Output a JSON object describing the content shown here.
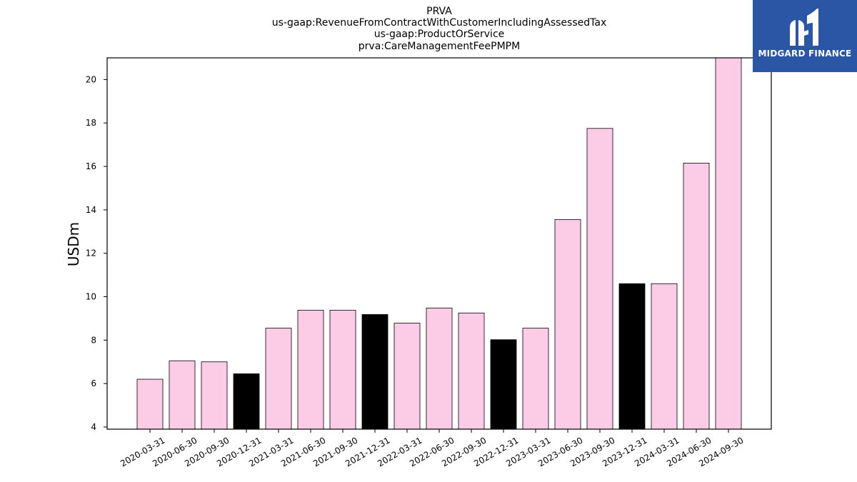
{
  "chart_data": {
    "type": "bar",
    "title_lines": [
      "PRVA",
      "us-gaap:RevenueFromContractWithCustomerIncludingAssessedTax",
      "us-gaap:ProductOrService",
      "prva:CareManagementFeePMPM"
    ],
    "ylabel": "USDm",
    "ylim": [
      3.9,
      21.0
    ],
    "yticks": [
      4,
      6,
      8,
      10,
      12,
      14,
      16,
      18,
      20
    ],
    "categories": [
      "2020-03-31",
      "2020-06-30",
      "2020-09-30",
      "2020-12-31",
      "2021-03-31",
      "2021-06-30",
      "2021-09-30",
      "2021-12-31",
      "2022-03-31",
      "2022-06-30",
      "2022-09-30",
      "2022-12-31",
      "2023-03-31",
      "2023-06-30",
      "2023-09-30",
      "2023-12-31",
      "2024-03-31",
      "2024-06-30",
      "2024-09-30"
    ],
    "values": [
      6.2,
      7.05,
      7.0,
      6.45,
      8.55,
      9.38,
      9.38,
      9.18,
      8.78,
      9.48,
      9.25,
      8.02,
      8.55,
      13.55,
      17.75,
      10.6,
      10.6,
      16.15,
      21.05
    ],
    "bar_colors": [
      "#fccbe5",
      "#fccbe5",
      "#fccbe5",
      "#000000",
      "#fccbe5",
      "#fccbe5",
      "#fccbe5",
      "#000000",
      "#fccbe5",
      "#fccbe5",
      "#fccbe5",
      "#000000",
      "#fccbe5",
      "#fccbe5",
      "#fccbe5",
      "#000000",
      "#fccbe5",
      "#fccbe5",
      "#fccbe5"
    ],
    "grid": false,
    "legend": "none"
  },
  "logo": {
    "text": "MIDGARD FINANCE",
    "icon": "midgard-logo-icon",
    "background": "#2b56a6"
  }
}
